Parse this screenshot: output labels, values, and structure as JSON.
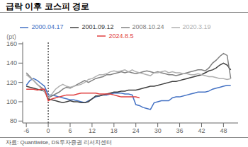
{
  "chart_data": {
    "type": "line",
    "title": "급락 이후 코스피 경로",
    "ylabel": "(pt)",
    "note": "자료: Quantiwise, DS투자증권 리서치센터",
    "x": [
      -6,
      -5,
      -4,
      -3,
      -2,
      -1,
      0,
      1,
      2,
      3,
      4,
      5,
      6,
      7,
      8,
      9,
      10,
      11,
      12,
      13,
      14,
      15,
      16,
      17,
      18,
      19,
      20,
      21,
      22,
      23,
      24,
      25,
      26,
      27,
      28,
      29,
      30,
      31,
      32,
      33,
      34,
      35,
      36,
      37,
      38,
      39,
      40,
      41,
      42,
      43,
      44,
      45,
      46,
      47,
      48,
      49,
      50
    ],
    "xlim": [
      -7,
      52
    ],
    "xticks": [
      -6,
      0,
      6,
      12,
      18,
      24,
      30,
      36,
      42,
      48
    ],
    "ylim": [
      78,
      162
    ],
    "yticks": [
      80,
      100,
      120,
      140,
      160
    ],
    "vline_x": 0,
    "grid": false,
    "legend": "top",
    "series": [
      {
        "name": "2000.04.17",
        "color": "#4472C4",
        "values": [
          117,
          122,
          124,
          122,
          119,
          116,
          107,
          107,
          106,
          105,
          104,
          103,
          102,
          102,
          101,
          100,
          99,
          101,
          103,
          105,
          106,
          107,
          107,
          108,
          109,
          109,
          109,
          108,
          108,
          107,
          97,
          96,
          94,
          93,
          92,
          99,
          100,
          101,
          101,
          101,
          104,
          105,
          105,
          106,
          107,
          108,
          109,
          110,
          110,
          110,
          111,
          113,
          114,
          115,
          116,
          117,
          117
        ]
      },
      {
        "name": "2001.09.12",
        "color": "#404040",
        "values": [
          116,
          115,
          114,
          113,
          112,
          111,
          103,
          102,
          101,
          100,
          99,
          100,
          101,
          100,
          100,
          99,
          99,
          100,
          103,
          106,
          106,
          107,
          108,
          109,
          110,
          110,
          111,
          111,
          112,
          112,
          112,
          113,
          114,
          115,
          116,
          116,
          117,
          118,
          119,
          120,
          121,
          121,
          122,
          123,
          124,
          125,
          126,
          127,
          128,
          130,
          132,
          133,
          135,
          138,
          140,
          138,
          133
        ]
      },
      {
        "name": "2008.10.24",
        "color": "#808080",
        "values": [
          130,
          126,
          122,
          118,
          115,
          112,
          104,
          106,
          108,
          110,
          113,
          115,
          114,
          116,
          118,
          120,
          122,
          120,
          122,
          124,
          125,
          126,
          128,
          128,
          129,
          130,
          131,
          130,
          131,
          130,
          129,
          130,
          131,
          132,
          131,
          130,
          131,
          130,
          129,
          128,
          128,
          127,
          128,
          129,
          130,
          131,
          132,
          133,
          133,
          132,
          135,
          140,
          143,
          147,
          150,
          148,
          124
        ]
      },
      {
        "name": "2020.3.19",
        "color": "#B0B0B0",
        "values": [
          128,
          125,
          122,
          118,
          114,
          110,
          104,
          108,
          113,
          116,
          118,
          116,
          115,
          116,
          117,
          118,
          120,
          123,
          124,
          126,
          128,
          128,
          129,
          131,
          132,
          131,
          132,
          133,
          131,
          133,
          131,
          130,
          129,
          128,
          127,
          130,
          130,
          131,
          132,
          130,
          131,
          130,
          130,
          129,
          129,
          128,
          128,
          129,
          128,
          127,
          126,
          126,
          125,
          124,
          124,
          123,
          124
        ]
      },
      {
        "name": "2024.8.5",
        "color": "#E04040",
        "values": [
          113,
          113,
          113,
          112,
          113,
          113,
          101,
          103,
          104,
          105,
          106,
          107,
          107,
          107,
          108,
          109,
          109,
          109,
          109,
          109,
          108,
          108,
          108,
          108,
          107,
          106,
          105,
          105,
          105,
          105,
          105,
          104,
          null,
          null,
          null,
          null,
          null,
          null,
          null,
          null,
          null,
          null,
          null,
          null,
          null,
          null,
          null,
          null,
          null,
          null,
          null,
          null,
          null,
          null,
          null,
          null,
          null
        ]
      }
    ]
  }
}
